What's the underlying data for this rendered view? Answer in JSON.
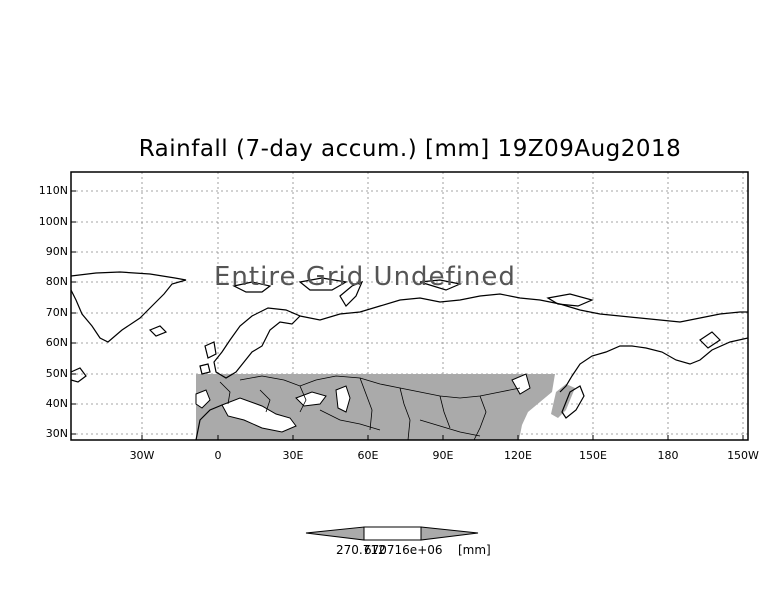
{
  "title": "Rainfall (7-day accum.) [mm] 19Z09Aug2018",
  "annotation": "Entire Grid Undefined",
  "lat_labels": [
    "110N",
    "100N",
    "90N",
    "80N",
    "70N",
    "60N",
    "50N",
    "40N",
    "30N"
  ],
  "lon_labels": [
    "30W",
    "0",
    "30E",
    "60E",
    "90E",
    "120E",
    "150E",
    "180",
    "150W"
  ],
  "legend": {
    "value_left": "270.712",
    "value_right": "670716e+06",
    "unit": "[mm]"
  },
  "colors": {
    "frame": "#000000",
    "shading": "#aaaaaa",
    "grid": "#888888"
  }
}
